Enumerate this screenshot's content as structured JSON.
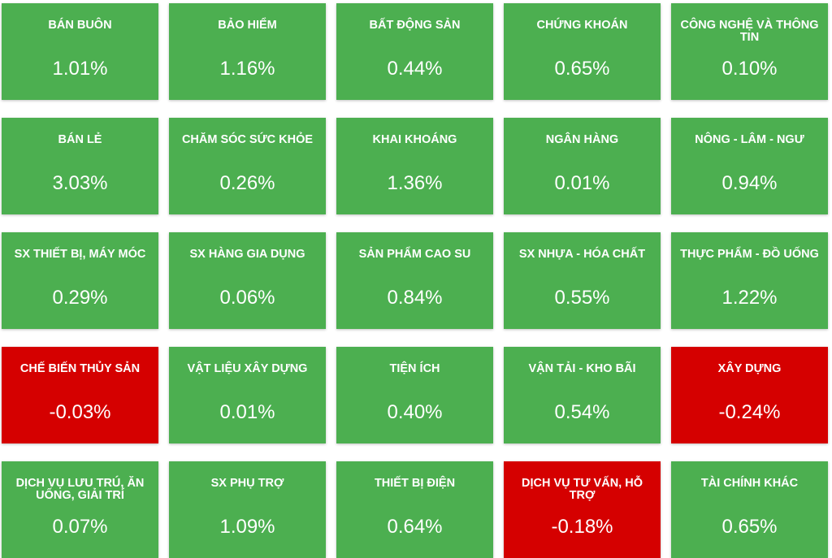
{
  "sectors": [
    {
      "name": "BÁN BUÔN",
      "change": "1.01%",
      "trend": "up"
    },
    {
      "name": "BẢO HIỂM",
      "change": "1.16%",
      "trend": "up"
    },
    {
      "name": "BẤT ĐỘNG SẢN",
      "change": "0.44%",
      "trend": "up"
    },
    {
      "name": "CHỨNG KHOÁN",
      "change": "0.65%",
      "trend": "up"
    },
    {
      "name": "CÔNG NGHỆ VÀ THÔNG TIN",
      "change": "0.10%",
      "trend": "up"
    },
    {
      "name": "BÁN LẺ",
      "change": "3.03%",
      "trend": "up"
    },
    {
      "name": "CHĂM SÓC SỨC KHỎE",
      "change": "0.26%",
      "trend": "up"
    },
    {
      "name": "KHAI KHOÁNG",
      "change": "1.36%",
      "trend": "up"
    },
    {
      "name": "NGÂN HÀNG",
      "change": "0.01%",
      "trend": "up"
    },
    {
      "name": "NÔNG - LÂM - NGƯ",
      "change": "0.94%",
      "trend": "up"
    },
    {
      "name": "SX THIẾT BỊ, MÁY MÓC",
      "change": "0.29%",
      "trend": "up"
    },
    {
      "name": "SX HÀNG GIA DỤNG",
      "change": "0.06%",
      "trend": "up"
    },
    {
      "name": "SẢN PHẨM CAO SU",
      "change": "0.84%",
      "trend": "up"
    },
    {
      "name": "SX NHỰA - HÓA CHẤT",
      "change": "0.55%",
      "trend": "up"
    },
    {
      "name": "THỰC PHẨM - ĐỒ UỐNG",
      "change": "1.22%",
      "trend": "up"
    },
    {
      "name": "CHẾ BIẾN THỦY SẢN",
      "change": "-0.03%",
      "trend": "down"
    },
    {
      "name": "VẬT LIỆU XÂY DỰNG",
      "change": "0.01%",
      "trend": "up"
    },
    {
      "name": "TIỆN ÍCH",
      "change": "0.40%",
      "trend": "up"
    },
    {
      "name": "VẬN TẢI - KHO BÃI",
      "change": "0.54%",
      "trend": "up"
    },
    {
      "name": "XÂY DỰNG",
      "change": "-0.24%",
      "trend": "down"
    },
    {
      "name": "DỊCH VỤ LƯU TRÚ, ĂN UỐNG, GIẢI TRÍ",
      "change": "0.07%",
      "trend": "up"
    },
    {
      "name": "SX PHỤ TRỢ",
      "change": "1.09%",
      "trend": "up"
    },
    {
      "name": "THIẾT BỊ ĐIỆN",
      "change": "0.64%",
      "trend": "up"
    },
    {
      "name": "DỊCH VỤ TƯ VẤN, HỖ TRỢ",
      "change": "-0.18%",
      "trend": "down"
    },
    {
      "name": "TÀI CHÍNH KHÁC",
      "change": "0.65%",
      "trend": "up"
    }
  ],
  "colors": {
    "up": "#4caf50",
    "down": "#d50000",
    "text": "#ffffff"
  }
}
